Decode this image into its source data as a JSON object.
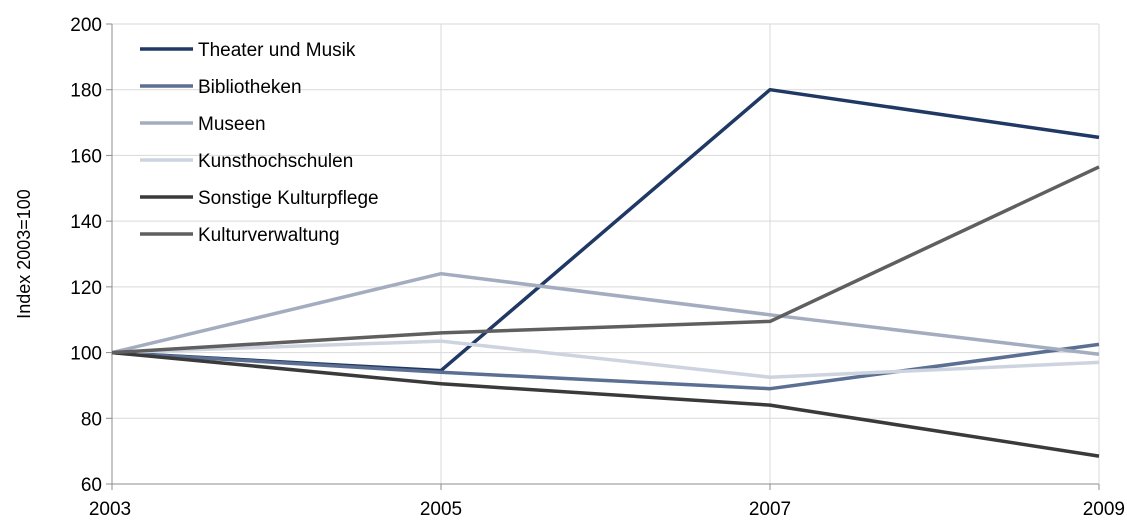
{
  "chart_data": {
    "type": "line",
    "title": "",
    "xlabel": "",
    "ylabel": "Index 2003=100",
    "x": [
      2003,
      2005,
      2007,
      2009
    ],
    "xlim": [
      2003,
      2009
    ],
    "ylim": [
      60,
      200
    ],
    "yticks": [
      60,
      80,
      100,
      120,
      140,
      160,
      180,
      200
    ],
    "xticks": [
      2003,
      2005,
      2007,
      2009
    ],
    "grid": true,
    "legend_position": "top-left",
    "series": [
      {
        "name": "Theater und Musik",
        "color": "#203864",
        "values": [
          100,
          94.5,
          180,
          165.5
        ]
      },
      {
        "name": "Bibliotheken",
        "color": "#5b6f92",
        "values": [
          100,
          94,
          89,
          102.5
        ]
      },
      {
        "name": "Museen",
        "color": "#a3adbf",
        "values": [
          100,
          124,
          111.5,
          99.5
        ]
      },
      {
        "name": "Kunsthochschulen",
        "color": "#ced4df",
        "values": [
          100,
          103.5,
          92.5,
          97
        ]
      },
      {
        "name": "Sonstige Kulturpflege",
        "color": "#3a3a3a",
        "values": [
          100,
          90.5,
          84,
          68.5
        ]
      },
      {
        "name": "Kulturverwaltung",
        "color": "#5f5f5f",
        "values": [
          100,
          106,
          109.5,
          156.5
        ]
      }
    ]
  }
}
